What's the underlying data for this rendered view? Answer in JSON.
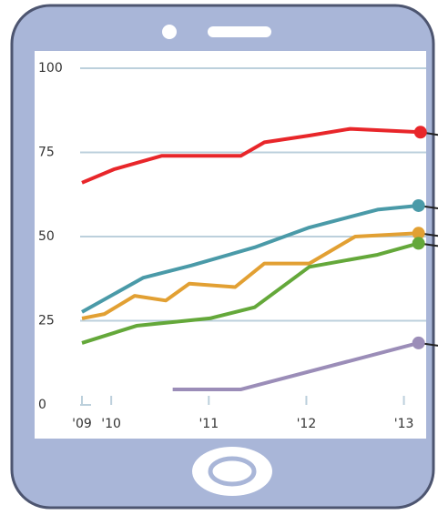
{
  "chart_data": {
    "type": "line",
    "xlim": [
      2009.7,
      2013.2
    ],
    "xticks": [
      {
        "value": 2009.7,
        "label": "'09"
      },
      {
        "value": 2010,
        "label": "'10"
      },
      {
        "value": 2011,
        "label": "'11"
      },
      {
        "value": 2012,
        "label": "'12"
      },
      {
        "value": 2013,
        "label": "'13"
      }
    ],
    "ylim": [
      0,
      100
    ],
    "yticks": [
      0,
      25,
      50,
      75,
      100
    ],
    "grid": true,
    "series": [
      {
        "color": "#e8262a",
        "x": [
          2009.7,
          2010.03,
          2010.52,
          2011.33,
          2011.57,
          2012.03,
          2012.45,
          2013.17
        ],
        "values": [
          66,
          70,
          74,
          74,
          78,
          80,
          82,
          81
        ]
      },
      {
        "color": "#4a9aa8",
        "x": [
          2009.7,
          2010.33,
          2010.82,
          2011.47,
          2012.03,
          2012.73,
          2013.15
        ],
        "values": [
          27.6,
          37.8,
          41.4,
          46.8,
          52.7,
          58,
          59.2
        ]
      },
      {
        "color": "#e2a033",
        "x": [
          2009.7,
          2009.93,
          2010.24,
          2010.56,
          2010.8,
          2011.27,
          2011.57,
          2012.03,
          2012.5,
          2013.15
        ],
        "values": [
          25.7,
          27,
          32.4,
          31,
          36,
          35,
          42,
          42,
          50,
          51
        ]
      },
      {
        "color": "#64a83a",
        "x": [
          2009.7,
          2010.26,
          2011.01,
          2011.47,
          2012.03,
          2012.73,
          2013.15
        ],
        "values": [
          18.4,
          23.5,
          25.7,
          29,
          41,
          44.6,
          48
        ]
      },
      {
        "color": "#9b8db8",
        "x": [
          2010.63,
          2011.33,
          2013.15
        ],
        "values": [
          4.6,
          4.6,
          18.4
        ]
      }
    ]
  }
}
